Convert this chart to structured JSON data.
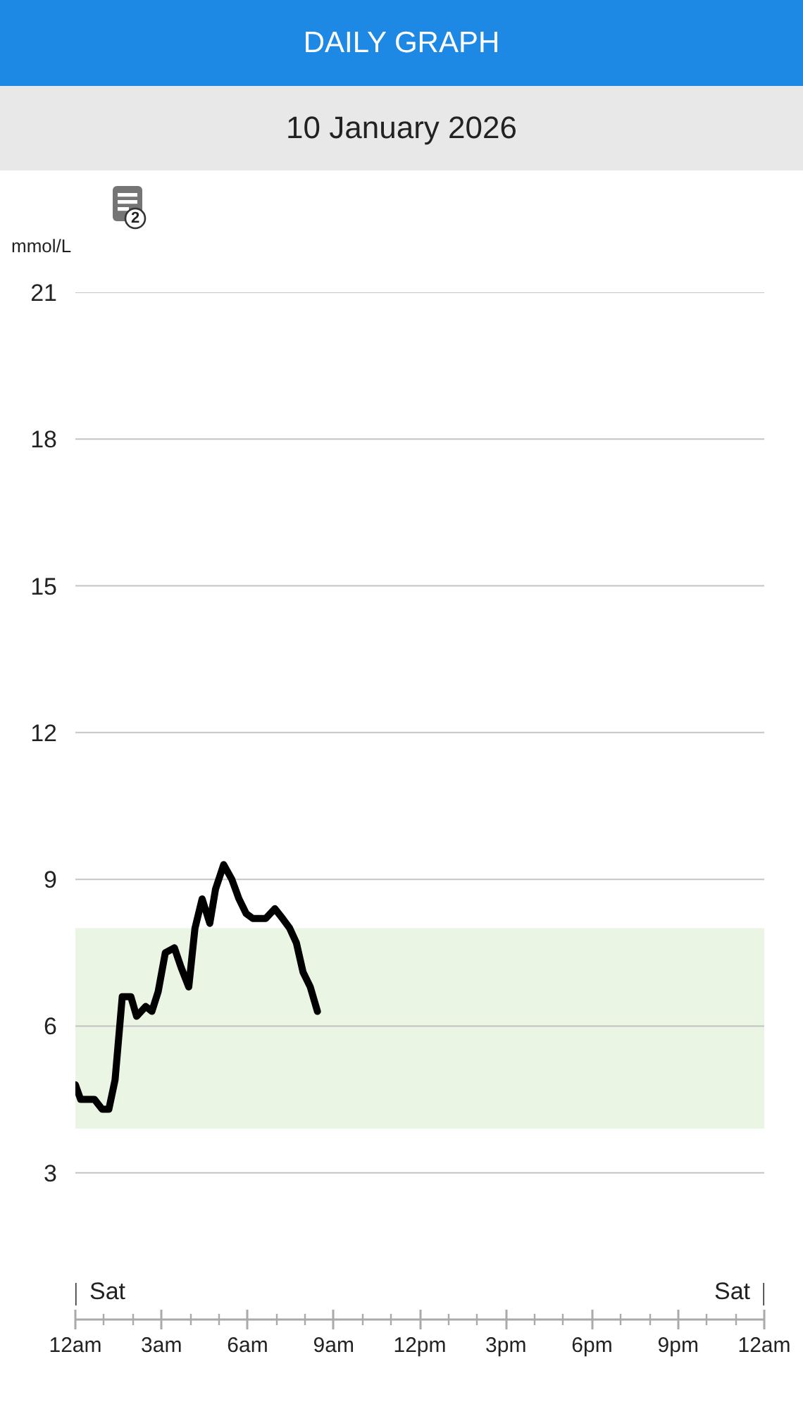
{
  "chart_data": {
    "type": "line",
    "title": "DAILY GRAPH",
    "subtitle": "10 January 2026",
    "ylabel": "mmol/L",
    "x": [
      "2026-01-10T00:00",
      "2026-01-10T00:11",
      "2026-01-10T00:23",
      "2026-01-10T00:40",
      "2026-01-10T00:56",
      "2026-01-10T01:10",
      "2026-01-10T01:23",
      "2026-01-10T01:38",
      "2026-01-10T01:56",
      "2026-01-10T02:08",
      "2026-01-10T02:27",
      "2026-01-10T02:40",
      "2026-01-10T02:53",
      "2026-01-10T03:08",
      "2026-01-10T03:27",
      "2026-01-10T03:41",
      "2026-01-10T03:57",
      "2026-01-10T04:10",
      "2026-01-10T04:25",
      "2026-01-10T04:41",
      "2026-01-10T04:53",
      "2026-01-10T05:10",
      "2026-01-10T05:27",
      "2026-01-10T05:42",
      "2026-01-10T05:57",
      "2026-01-10T06:11",
      "2026-01-10T06:38",
      "2026-01-10T06:57",
      "2026-01-10T07:13",
      "2026-01-10T07:28",
      "2026-01-10T07:42",
      "2026-01-10T07:56",
      "2026-01-10T08:11",
      "2026-01-10T08:26"
    ],
    "series": [
      {
        "color": "#000000",
        "values": [
          4.8,
          4.5,
          4.5,
          4.5,
          4.3,
          4.3,
          4.9,
          6.6,
          6.6,
          6.2,
          6.4,
          6.3,
          6.7,
          7.5,
          7.6,
          7.2,
          6.8,
          8.0,
          8.6,
          8.1,
          8.8,
          9.3,
          9.0,
          8.6,
          8.3,
          8.2,
          8.2,
          8.4,
          8.2,
          8.0,
          7.7,
          7.1,
          6.8,
          6.3
        ]
      }
    ],
    "xlim": [
      "2026-01-10T00:00",
      "2026-01-11T00:00"
    ],
    "xticks": [
      {
        "value": "2026-01-10T00:00",
        "label": "12am"
      },
      {
        "value": "2026-01-10T01:00",
        "label": null
      },
      {
        "value": "2026-01-10T02:00",
        "label": null
      },
      {
        "value": "2026-01-10T03:00",
        "label": "3am"
      },
      {
        "value": "2026-01-10T04:00",
        "label": null
      },
      {
        "value": "2026-01-10T05:00",
        "label": null
      },
      {
        "value": "2026-01-10T06:00",
        "label": "6am"
      },
      {
        "value": "2026-01-10T07:00",
        "label": null
      },
      {
        "value": "2026-01-10T08:00",
        "label": null
      },
      {
        "value": "2026-01-10T09:00",
        "label": "9am"
      },
      {
        "value": "2026-01-10T10:00",
        "label": null
      },
      {
        "value": "2026-01-10T11:00",
        "label": null
      },
      {
        "value": "2026-01-10T12:00",
        "label": "12pm"
      },
      {
        "value": "2026-01-10T13:00",
        "label": null
      },
      {
        "value": "2026-01-10T14:00",
        "label": null
      },
      {
        "value": "2026-01-10T15:00",
        "label": "3pm"
      },
      {
        "value": "2026-01-10T16:00",
        "label": null
      },
      {
        "value": "2026-01-10T17:00",
        "label": null
      },
      {
        "value": "2026-01-10T18:00",
        "label": "6pm"
      },
      {
        "value": "2026-01-10T19:00",
        "label": null
      },
      {
        "value": "2026-01-10T20:00",
        "label": null
      },
      {
        "value": "2026-01-10T21:00",
        "label": "9pm"
      },
      {
        "value": "2026-01-10T22:00",
        "label": null
      },
      {
        "value": "2026-01-10T23:00",
        "label": null
      },
      {
        "value": "2026-01-11T00:00",
        "label": "12am"
      }
    ],
    "ylim": [
      0,
      21
    ],
    "yticks": [
      3,
      6,
      9,
      12,
      15,
      18,
      21
    ],
    "grid": "y",
    "line_style": "solid",
    "bands": [
      {
        "axis": "y",
        "from": 3.9,
        "to": 8.0,
        "color": "#ebf5e3"
      }
    ],
    "annotations": [
      "2",
      "Sat",
      "Sat"
    ]
  }
}
